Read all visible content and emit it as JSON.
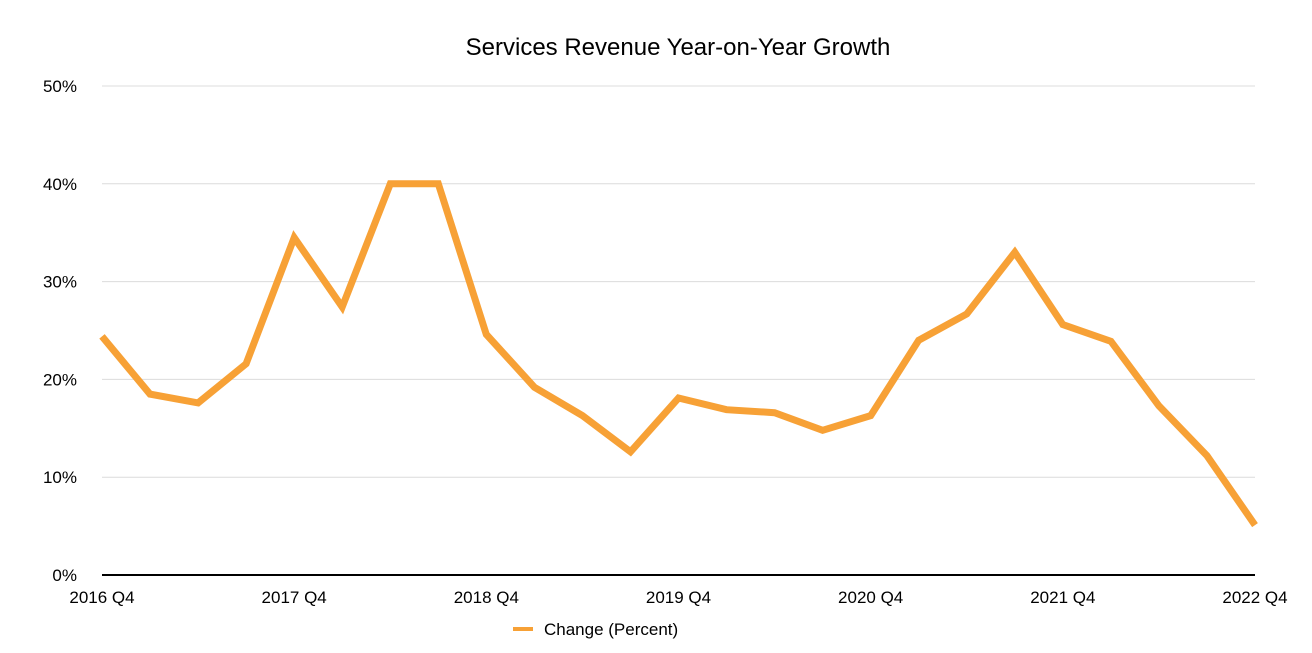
{
  "chart_data": {
    "type": "line",
    "title": "Services Revenue Year-on-Year Growth",
    "xlabel": "",
    "ylabel": "",
    "x_tick_labels": [
      "2016 Q4",
      "2017 Q4",
      "2018 Q4",
      "2019 Q4",
      "2020 Q4",
      "2021 Q4",
      "2022 Q4"
    ],
    "y_tick_labels": [
      "0%",
      "10%",
      "20%",
      "30%",
      "40%",
      "50%"
    ],
    "y_ticks": [
      0,
      10,
      20,
      30,
      40,
      50
    ],
    "ylim": [
      0,
      50
    ],
    "grid": true,
    "legend_position": "bottom-center",
    "categories": [
      "2016 Q4",
      "2017 Q1",
      "2017 Q2",
      "2017 Q3",
      "2017 Q4",
      "2018 Q1",
      "2018 Q2",
      "2018 Q3",
      "2018 Q4",
      "2019 Q1",
      "2019 Q2",
      "2019 Q3",
      "2019 Q4",
      "2020 Q1",
      "2020 Q2",
      "2020 Q3",
      "2020 Q4",
      "2021 Q1",
      "2021 Q2",
      "2021 Q3",
      "2021 Q4",
      "2022 Q1",
      "2022 Q2",
      "2022 Q3",
      "2022 Q4"
    ],
    "series": [
      {
        "name": "Change (Percent)",
        "color": "#f7a136",
        "values": [
          24.4,
          18.5,
          17.6,
          21.6,
          34.5,
          27.4,
          40.0,
          40.0,
          24.6,
          19.2,
          16.3,
          12.6,
          18.1,
          16.9,
          16.6,
          14.8,
          16.3,
          24.0,
          26.7,
          33.0,
          25.6,
          23.9,
          17.3,
          12.2,
          5.1
        ]
      }
    ]
  }
}
